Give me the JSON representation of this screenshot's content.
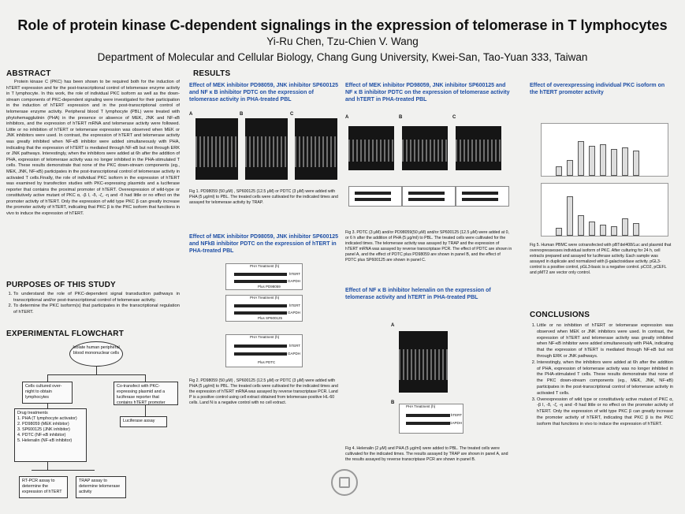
{
  "header": {
    "title": "Role of protein kinase C-dependent signalings in the expression of telomerase in T lymphocytes",
    "authors": "Yi-Ru Chen, Tzu-Chien V. Wang",
    "affiliation": "Department of Molecular and Cellular Biology, Chang Gung University, Kwei-San,  Tao-Yuan 333, Taiwan"
  },
  "abstract": {
    "heading": "ABSTRACT",
    "text": "Protein kinase C (PKC) has been shown to be required both for the induction of hTERT expression and for the post-transcriptional control of telomerase enzyme activity in T lymphocyte. In this work, the role of individual PKC isoform as well as the down-stream components of PKC-dependent signaling were investigated for their participation in the induction of hTERT expression and in the post-transcriptional control of telomerase enzyme activity. Peripheral blood T lymphocyte (PBL) were treated with phytohemagglutinin (PHA) in the presence or absence of MEK, JNK and NF-κB inhibitors, and the expression of hTERT mRNA and telomerase activity were followed. Little or no inhibition of hTERT or telomerase expression was observed when MEK or JNK inhibitors were used. In contrast, the expression of hTERT and telomerase activity was greatly inhibited when NF-κB inhibitor were added simultaneously with PHA, indicating that the expression of hTERT is mediated through NF-κB but not through ERK or JNK pathways. Interestingly, when the inhibitors were added at 6h after the addition of PHA, expression of telomerase activity was no longer inhibited in the PHA-stimulated T cells. These results demonstrate that none of the PKC down-stream components (eg., MEK, JNK, NF-κB) participates in the post-transcriptional control of telomerase activity in activated T cells.Finally, the role of individual PKC isoform in the expression of hTERT was examined by transfection studies with PKC-expressing plasmids and a luciferase reporter that contains the proximal promoter of hTERT. Overexpression of wild-type or constitutively active mutant of PKC α, -β I, -δ, -ζ, -η and -θ had little or no effect on the promoter activity of hTERT. Only the expression of wild type PKC β can greatly increase the promoter activity of hTERT, indicating that PKC β is the PKC isoform that functions in vivo to induce the expression of hTERT."
  },
  "purposes": {
    "heading": "PURPOSES OF THIS STUDY",
    "items": [
      "To understand the role of PKC-dependent signal transduction pathways in transcriptional and/or post-transcriptional control of telomerase activity.",
      "To determine the PKC isoform(s) that participates in the transcriptional regulation of hTERT."
    ]
  },
  "flowchart": {
    "heading": "EXPERIMENTAL FLOWCHART",
    "start": "Isolate human peripheral blood mononuclear cells",
    "left_box": "Cells cultured over-night to obtain lymphocytes",
    "right_box": "Co-transfect with PKC-expressing plasmid and a luciferase reporter that contains hTERT promoter",
    "drug_title": "Drug treatments",
    "drugs": [
      "1. PHA (T lymphocyte activator)",
      "2. PD98059 (MEK inhibitor)",
      "3. SP600125 (JNK inhibitor)",
      "4. PDTC (NF-κB inhibitor)",
      "5. Helenalin (NF-κB inhibitor)"
    ],
    "luciferase": "Luciferase assay",
    "rtpcr": "RT-PCR assay to determine the expression of hTERT",
    "trap": "TRAP assay to determine telomerase activity"
  },
  "results": {
    "heading": "RESULTS",
    "fig1_title": "Effect of MEK inhibitor PD98059, JNK inhibitor SP600125 and NF κ B inhibitor PDTC on the expression of telomerase activity in PHA-treated PBL",
    "fig1_cap": "Fig 1. PD98059 (50 μM) , SP600125 (12.5 μM) or PDTC (3 μM) were added with PHA (5 μg/ml) to PBL. The treated cells were cultivated for the indicated times and assayed for telomerase activity by TRAP.",
    "fig2_title": "Effect of MEK inhibitor PD98059, JNK inhibitor SP600125 and NFkB inhibitor PDTC on the expression of hTERT in PHA-treated PBL",
    "fig2_cap": "Fig 2. PD98059 (50 μM) , SP600125 (12.5 μM) or PDTC (3 μM) were added with PHA (5 μg/ml) to PBL. The treated cells were cultivated for the indicated times and the expression of hTERT mRNA was assayed by reverse transcriptase PCR. Land P is a positive control using cell extract obtained from telomerase-positive HL-60 cells. Land N is a negative control with no cell extract.",
    "fig2_panels": [
      "Plus PD98059",
      "Plus SP600125",
      "Plus PDTC"
    ],
    "fig3_title": "Effect of MEK inhibitor PD98059, JNK inhibitor SP600125 and NF κ B inhibitor PDTC on the expression of telomerase activity and hTERT in PHA-treated PBL",
    "fig3_cap": "Fig 3. PDTC (3 μM) and/or PD98059(50 μM) and/or SP600125 (12.5 μM) were added at 0, or 6 h after the addition of PHA (5 μg/ml) to PBL. The treated cells were cultivated for the indicated times. The telomerase activity was assayed by TRAP and the expression of hTERT mRNA was assayed by reverse transcriptase PCR. The effect of PDTC are shown in panel A, and the effect of PDTC plus PD98059 are shown in panel B, and the effect of PDTC plus SP600125 are shown in panel C.",
    "fig4_title": "Effect of NF κ B inhibitor helenalin on the expression of telomerase activity and hTERT in PHA-treated PBL",
    "fig4_cap": "Fig 4. Helenalin (2 μM) and PHA (5 μg/ml) were added to PBL. The treated cells were cultivated for the indicated times. The results assayed by TRAP are shown in panel A, and the results assayed by reverse transcriptase PCR are shown in panel B.",
    "fig5_title": "Effect of overexpressing individual PKC isoform on the hTERT promoter activity",
    "fig5_cap": "Fig 5. Human PBMC were cotransfected with pBTdel408/Luc and plasmid that overexpressesses individual isoform of PKC. After culturing for 24 h, cell extracts prepared and assayed for luciferase activity. Each sample was assayed in duplicate and normalized with β-galactosidase activity. pGL3-control is a positive control, pGL3-basic is a negative control. pCO2, pCEFL and pMT2 are vector only control.",
    "panel_labels": [
      "A",
      "B",
      "C"
    ],
    "gel_labels": [
      "hTERT",
      "GAPDH"
    ],
    "pha_label": "PHA Treatment (h)",
    "lanes": "N  P  0  24  48  72  24  48  72"
  },
  "conclusions": {
    "heading": "CONCLUSIONS",
    "items": [
      "Little or no inhibition of hTERT or telomerase expression was observed when MEK or JNK inhibitors were used. In contrast, the expression of hTERT and telomerase activity was greatly inhibited when NF-κB inhibitor were added simultaneously with PHA, indicating that the expression of hTERT is mediated through NF-κB but not through ERK or JNK pathways.",
      "Interestingly, when the inhibitors were added at 6h after the addition of PHA, expression of telomerase activity was no longer inhibited in the PHA-stimulated T cells. These results demonstrate that none of the PKC down-stream components (eg., MEK, JNK, NF-κB) participates in the post-transcriptional control of telomerase activity in activated T cells.",
      "Overexpression of wild type or constitutively active mutant of PKC α, -β I, -δ, -ζ, -η and -θ had little or no effect on the promoter activity of hTERT. Only the expression of wild type PKC β can greatly increase the promoter activity of hTERT, indicating that PKC β is the PKC isoform that functions in vivo to induce the expression of hTERT."
    ]
  }
}
